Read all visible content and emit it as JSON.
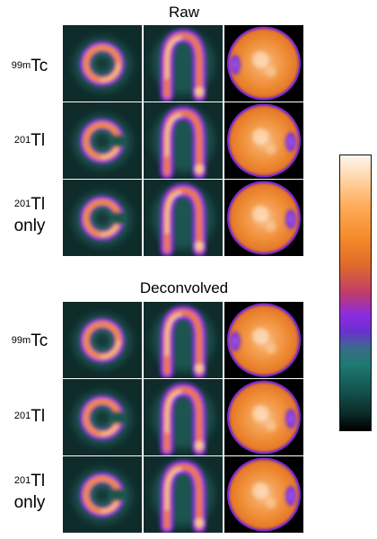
{
  "sections": [
    {
      "title": "Raw",
      "rows": [
        {
          "isotope_mass": "99m",
          "element": "Tc",
          "suffix": ""
        },
        {
          "isotope_mass": "201",
          "element": "Tl",
          "suffix": ""
        },
        {
          "isotope_mass": "201",
          "element": "Tl",
          "suffix": "only"
        }
      ]
    },
    {
      "title": "Deconvolved",
      "rows": [
        {
          "isotope_mass": "99m",
          "element": "Tc",
          "suffix": ""
        },
        {
          "isotope_mass": "201",
          "element": "Tl",
          "suffix": ""
        },
        {
          "isotope_mass": "201",
          "element": "Tl",
          "suffix": "only"
        }
      ]
    }
  ],
  "columns": [
    "short-axis-slice",
    "long-axis-slice",
    "polar-map"
  ],
  "colormap": [
    "#000000",
    "#0b2a28",
    "#14514d",
    "#1e7a72",
    "#6a30d0",
    "#8a2ce0",
    "#c03c6a",
    "#e06a2a",
    "#f48a2a",
    "#ffad5c",
    "#ffd7aa",
    "#fff6ee"
  ]
}
